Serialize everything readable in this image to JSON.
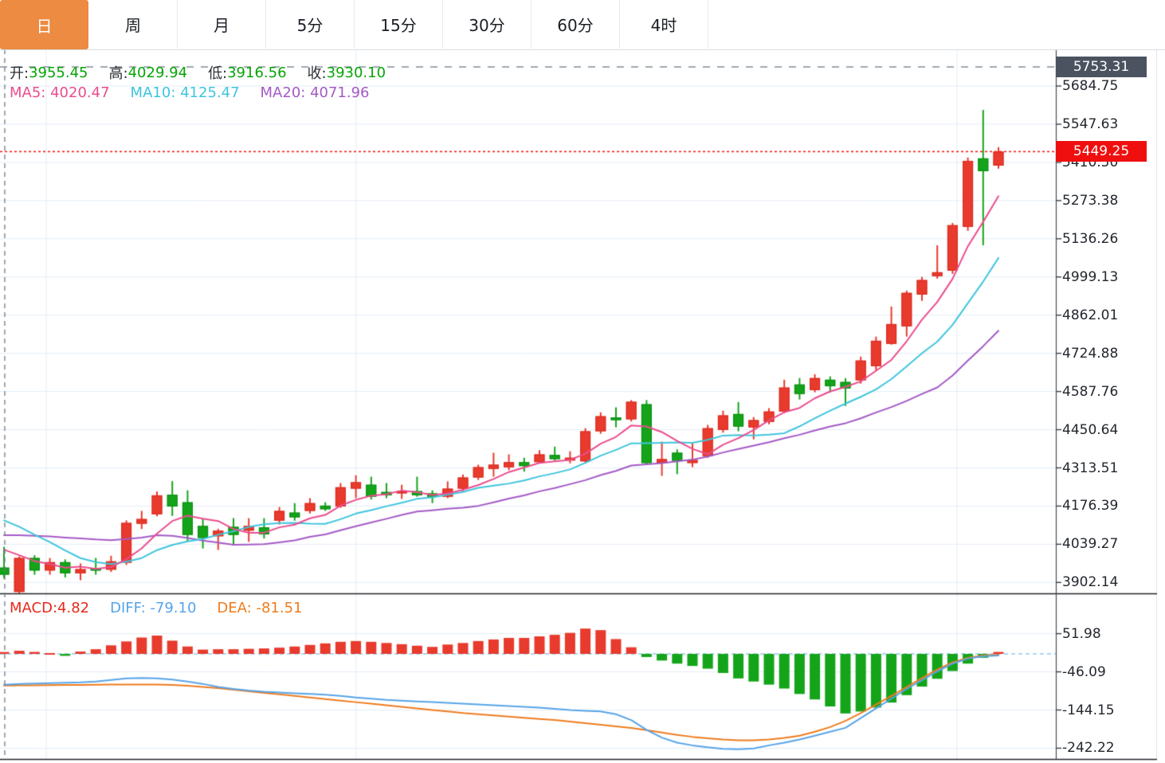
{
  "tabs": {
    "items": [
      {
        "label": "日",
        "active": true
      },
      {
        "label": "周",
        "active": false
      },
      {
        "label": "月",
        "active": false
      },
      {
        "label": "5分",
        "active": false
      },
      {
        "label": "15分",
        "active": false
      },
      {
        "label": "30分",
        "active": false
      },
      {
        "label": "60分",
        "active": false
      },
      {
        "label": "4时",
        "active": false
      }
    ]
  },
  "legend_ohlc": {
    "open_label": "开:",
    "open": "3955.45",
    "high_label": "高:",
    "high": "4029.94",
    "low_label": "低:",
    "low": "3916.56",
    "close_label": "收:",
    "close": "3930.10"
  },
  "legend_ma": {
    "ma5_label": "MA5:",
    "ma5": "4020.47",
    "ma10_label": "MA10:",
    "ma10": "4125.47",
    "ma20_label": "MA20:",
    "ma20": "4071.96"
  },
  "legend_macd": {
    "macd_label": "MACD:",
    "macd": "4.82",
    "diff_label": "DIFF:",
    "diff": "-79.10",
    "dea_label": "DEA:",
    "dea": "-81.51"
  },
  "price_axis": {
    "ticks": [
      5684.75,
      5547.63,
      5410.5,
      5273.38,
      5136.26,
      4999.13,
      4862.01,
      4724.88,
      4587.76,
      4450.64,
      4313.51,
      4176.39,
      4039.27,
      3902.14
    ],
    "hover_badge": "5753.31",
    "last_badge": "5449.25"
  },
  "macd_axis": {
    "ticks": [
      51.98,
      -46.09,
      -144.15,
      -242.22
    ]
  },
  "colors": {
    "up": "#e83a2d",
    "up_border": "#d92b1f",
    "down": "#14a41a",
    "down_border": "#0c8c12",
    "ma5": "#eb4d8f",
    "ma10": "#3fc5dd",
    "ma20": "#a45ac6",
    "diff": "#57a4e8",
    "dea": "#ee7c1f",
    "grid": "#e3edf7",
    "zero_dash": "#90c9ee",
    "crosshair": "#6e7a88",
    "last_price_line": "#f21d1d",
    "hover_badge_bg": "#4c5360",
    "last_badge_bg": "#f00f0f",
    "active_tab": "#ec8b41",
    "axis_line": "#454c58"
  },
  "chart_data": {
    "type": "candlestick+macd",
    "title": "",
    "crosshair": {
      "index": 0,
      "price": 5753.31
    },
    "last_price": 5449.25,
    "price_ylim": [
      3860,
      5760
    ],
    "macd_ylim": [
      -260,
      80
    ],
    "candles_ohlc": [
      [
        3955.45,
        4029.94,
        3916.56,
        3930.1
      ],
      [
        3868,
        3996,
        3860,
        3990
      ],
      [
        3990,
        4000,
        3930,
        3945
      ],
      [
        3945,
        3990,
        3930,
        3975
      ],
      [
        3975,
        3985,
        3920,
        3935
      ],
      [
        3935,
        3970,
        3910,
        3950
      ],
      [
        3952,
        3990,
        3930,
        3948
      ],
      [
        3948,
        3998,
        3940,
        3978
      ],
      [
        3973,
        4125,
        3965,
        4116
      ],
      [
        4113,
        4159,
        4094,
        4130
      ],
      [
        4147,
        4229,
        4140,
        4215
      ],
      [
        4217,
        4266,
        4141,
        4175
      ],
      [
        4190,
        4233,
        4048,
        4073
      ],
      [
        4105,
        4130,
        4024,
        4062
      ],
      [
        4068,
        4095,
        4019,
        4088
      ],
      [
        4102,
        4133,
        4039,
        4073
      ],
      [
        4088,
        4133,
        4048,
        4105
      ],
      [
        4100,
        4133,
        4060,
        4075
      ],
      [
        4124,
        4173,
        4110,
        4159
      ],
      [
        4153,
        4187,
        4124,
        4136
      ],
      [
        4159,
        4205,
        4150,
        4187
      ],
      [
        4178,
        4190,
        4159,
        4165
      ],
      [
        4175,
        4259,
        4170,
        4244
      ],
      [
        4239,
        4287,
        4205,
        4262
      ],
      [
        4253,
        4282,
        4200,
        4210
      ],
      [
        4227,
        4259,
        4205,
        4215
      ],
      [
        4222,
        4253,
        4202,
        4230
      ],
      [
        4230,
        4282,
        4210,
        4215
      ],
      [
        4222,
        4233,
        4187,
        4210
      ],
      [
        4210,
        4265,
        4205,
        4239
      ],
      [
        4239,
        4290,
        4230,
        4279
      ],
      [
        4279,
        4325,
        4270,
        4316
      ],
      [
        4310,
        4368,
        4282,
        4325
      ],
      [
        4316,
        4362,
        4305,
        4334
      ],
      [
        4334,
        4350,
        4300,
        4320
      ],
      [
        4334,
        4377,
        4330,
        4362
      ],
      [
        4360,
        4390,
        4340,
        4345
      ],
      [
        4340,
        4373,
        4330,
        4350
      ],
      [
        4337,
        4456,
        4330,
        4445
      ],
      [
        4445,
        4513,
        4436,
        4499
      ],
      [
        4495,
        4531,
        4459,
        4485
      ],
      [
        4488,
        4557,
        4480,
        4551
      ],
      [
        4542,
        4557,
        4325,
        4331
      ],
      [
        4331,
        4408,
        4285,
        4345
      ],
      [
        4368,
        4380,
        4291,
        4339
      ],
      [
        4331,
        4402,
        4316,
        4342
      ],
      [
        4356,
        4468,
        4350,
        4456
      ],
      [
        4450,
        4519,
        4440,
        4502
      ],
      [
        4507,
        4550,
        4445,
        4462
      ],
      [
        4459,
        4496,
        4416,
        4485
      ],
      [
        4479,
        4528,
        4470,
        4516
      ],
      [
        4516,
        4630,
        4510,
        4602
      ],
      [
        4613,
        4636,
        4559,
        4579
      ],
      [
        4593,
        4650,
        4585,
        4636
      ],
      [
        4630,
        4642,
        4585,
        4607
      ],
      [
        4622,
        4636,
        4536,
        4599
      ],
      [
        4628,
        4713,
        4616,
        4699
      ],
      [
        4679,
        4785,
        4662,
        4770
      ],
      [
        4759,
        4893,
        4756,
        4830
      ],
      [
        4822,
        4950,
        4785,
        4942
      ],
      [
        4936,
        4999,
        4913,
        4988
      ],
      [
        5002,
        5113,
        4993,
        5016
      ],
      [
        5022,
        5193,
        5010,
        5185
      ],
      [
        5179,
        5428,
        5165,
        5416
      ],
      [
        5425,
        5599,
        5113,
        5379
      ],
      [
        5399,
        5465,
        5388,
        5449.25
      ]
    ],
    "ma_warmup_closes": [
      4000,
      3990,
      4000,
      4010,
      4015,
      4020,
      4020,
      4025,
      4030,
      4035,
      4045,
      4220,
      4230,
      4240,
      4235,
      4225,
      4090,
      4050,
      4030,
      4000
    ],
    "ma_periods": {
      "ma5": 5,
      "ma10": 10,
      "ma20": 20
    },
    "macd_hist": [
      4.82,
      8,
      5,
      2,
      -5,
      6,
      12,
      22,
      32,
      42,
      47,
      34,
      19,
      11,
      12,
      12,
      13,
      14,
      16,
      19,
      23,
      27,
      31,
      33,
      31,
      28,
      25,
      21,
      18,
      24,
      28,
      33,
      37,
      41,
      41,
      45,
      49,
      54,
      65,
      61,
      38,
      17,
      -8,
      -17,
      -25,
      -31,
      -38,
      -49,
      -63,
      -71,
      -79,
      -89,
      -103,
      -117,
      -135,
      -153,
      -148,
      -138,
      -125,
      -106,
      -84,
      -64,
      -44,
      -25,
      -10,
      5
    ],
    "diff_line": [
      -79.1,
      -77,
      -76,
      -75,
      -74,
      -73,
      -71,
      -67,
      -63,
      -62,
      -63,
      -66,
      -71,
      -77,
      -85,
      -90,
      -94,
      -97,
      -99,
      -101,
      -103,
      -105,
      -108,
      -112,
      -115,
      -118,
      -120,
      -122,
      -124,
      -126,
      -128,
      -130,
      -132,
      -134,
      -136,
      -138,
      -141,
      -144,
      -146,
      -148,
      -155,
      -170,
      -195,
      -215,
      -228,
      -235,
      -240,
      -244,
      -245,
      -243,
      -235,
      -228,
      -220,
      -210,
      -200,
      -190,
      -165,
      -140,
      -115,
      -90,
      -68,
      -45,
      -25,
      -12,
      -6,
      -4
    ],
    "dea_line": [
      -81.51,
      -81,
      -81,
      -80.5,
      -80,
      -80,
      -79.5,
      -79,
      -78.5,
      -78.5,
      -79,
      -80,
      -82,
      -85,
      -88,
      -92,
      -96,
      -100,
      -104,
      -108,
      -112,
      -116,
      -120,
      -124,
      -128,
      -132,
      -136,
      -140,
      -144,
      -148,
      -152,
      -155,
      -158,
      -161,
      -164,
      -167,
      -170,
      -174,
      -178,
      -182,
      -186,
      -190,
      -196,
      -202,
      -208,
      -213,
      -217,
      -220,
      -222,
      -222,
      -220,
      -216,
      -210,
      -200,
      -188,
      -172,
      -152,
      -130,
      -108,
      -85,
      -62,
      -40,
      -22,
      -10,
      -4,
      -2
    ]
  }
}
